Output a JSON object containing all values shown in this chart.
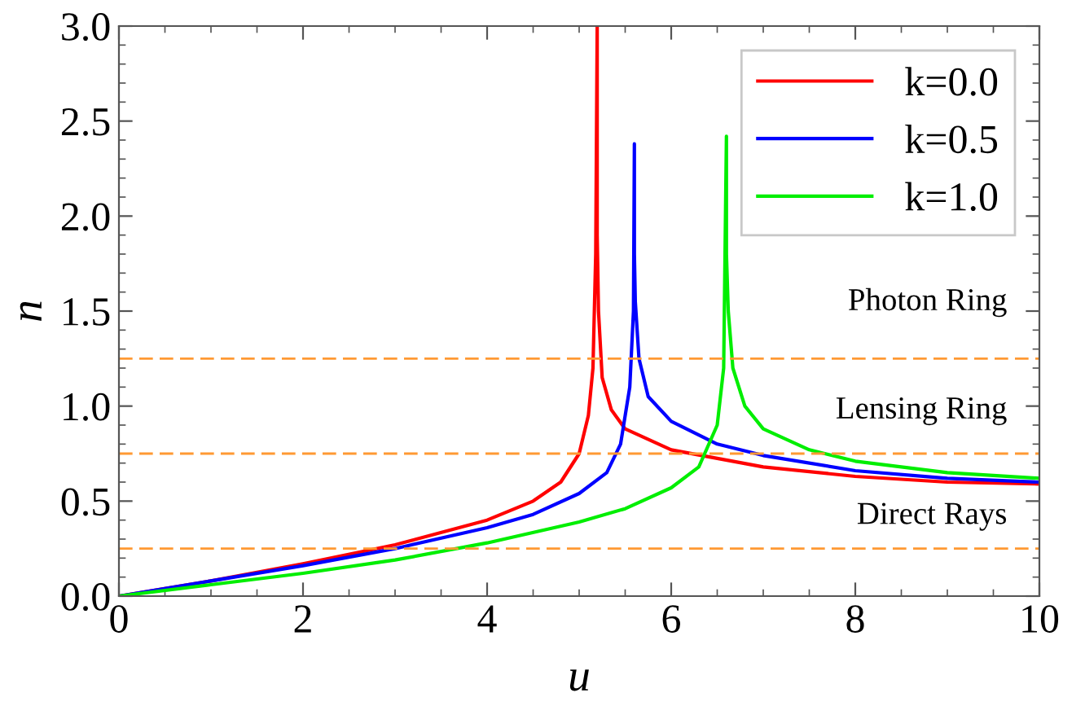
{
  "chart_data": {
    "type": "line",
    "xlabel": "u",
    "ylabel": "n",
    "xlim": [
      0,
      10
    ],
    "ylim": [
      0,
      3.0
    ],
    "xticks": [
      0,
      2,
      4,
      6,
      8,
      10
    ],
    "yticks": [
      {
        "value": 0,
        "label": "0.0"
      },
      0.5,
      {
        "value": 1,
        "label": "1.0"
      },
      1.5,
      {
        "value": 2,
        "label": "2.0"
      },
      2.5,
      {
        "value": 3,
        "label": "3.0"
      }
    ],
    "grid": false,
    "legend": "top right",
    "marker": "none",
    "line_style": "solid",
    "series": [
      {
        "name": "k=0.0",
        "color": "#ff0000",
        "x": [
          0,
          1,
          2,
          3,
          4,
          4.5,
          4.8,
          5.0,
          5.1,
          5.15,
          5.18,
          5.196,
          5.196,
          5.21,
          5.25,
          5.35,
          5.5,
          6,
          7,
          8,
          9,
          10
        ],
        "values": [
          0,
          0.08,
          0.17,
          0.27,
          0.4,
          0.5,
          0.6,
          0.75,
          0.95,
          1.2,
          1.8,
          3.0,
          1.9,
          1.5,
          1.15,
          0.98,
          0.88,
          0.77,
          0.68,
          0.63,
          0.6,
          0.59
        ]
      },
      {
        "name": "k=0.5",
        "color": "#0000ff",
        "x": [
          0,
          1,
          2,
          3,
          4,
          4.5,
          5.0,
          5.3,
          5.45,
          5.55,
          5.59,
          5.6,
          5.6,
          5.61,
          5.65,
          5.75,
          6,
          6.5,
          7,
          8,
          9,
          10
        ],
        "values": [
          0,
          0.08,
          0.16,
          0.25,
          0.36,
          0.43,
          0.54,
          0.65,
          0.8,
          1.1,
          1.5,
          2.38,
          1.8,
          1.55,
          1.25,
          1.05,
          0.92,
          0.8,
          0.74,
          0.66,
          0.62,
          0.6
        ]
      },
      {
        "name": "k=1.0",
        "color": "#00ee00",
        "x": [
          0,
          1,
          2,
          3,
          4,
          5,
          5.5,
          6,
          6.3,
          6.5,
          6.57,
          6.6,
          6.6,
          6.62,
          6.67,
          6.8,
          7,
          7.5,
          8,
          9,
          10
        ],
        "values": [
          0,
          0.06,
          0.12,
          0.19,
          0.28,
          0.39,
          0.46,
          0.57,
          0.68,
          0.9,
          1.2,
          2.42,
          1.8,
          1.5,
          1.2,
          1.0,
          0.88,
          0.77,
          0.71,
          0.65,
          0.62
        ]
      }
    ],
    "ref_lines": [
      {
        "axis": "y",
        "value": 0.25,
        "color": "#ff9933",
        "line_style": "dashed"
      },
      {
        "axis": "y",
        "value": 0.75,
        "color": "#ff9933",
        "line_style": "dashed"
      },
      {
        "axis": "y",
        "value": 1.25,
        "color": "#ff9933",
        "line_style": "dashed"
      }
    ],
    "annotations": [
      "Photon Ring",
      "Lensing Ring",
      "Direct Rays"
    ]
  }
}
